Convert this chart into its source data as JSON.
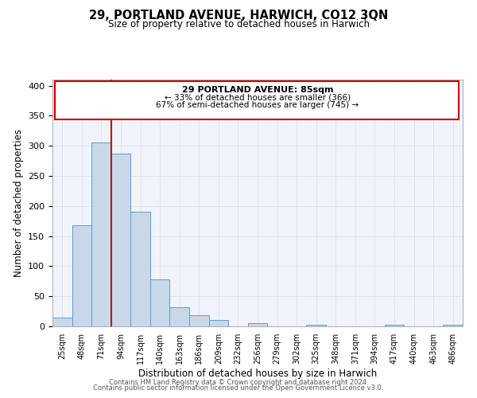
{
  "title": "29, PORTLAND AVENUE, HARWICH, CO12 3QN",
  "subtitle": "Size of property relative to detached houses in Harwich",
  "xlabel": "Distribution of detached houses by size in Harwich",
  "ylabel": "Number of detached properties",
  "bar_color": "#c8d8e8",
  "bar_edge_color": "#5b9bd5",
  "marker_line_color": "#cc0000",
  "bin_labels": [
    "25sqm",
    "48sqm",
    "71sqm",
    "94sqm",
    "117sqm",
    "140sqm",
    "163sqm",
    "186sqm",
    "209sqm",
    "232sqm",
    "256sqm",
    "279sqm",
    "302sqm",
    "325sqm",
    "348sqm",
    "371sqm",
    "394sqm",
    "417sqm",
    "440sqm",
    "463sqm",
    "486sqm"
  ],
  "bar_heights": [
    15,
    168,
    305,
    287,
    191,
    78,
    32,
    19,
    10,
    0,
    5,
    0,
    0,
    2,
    0,
    0,
    0,
    2,
    0,
    0,
    2
  ],
  "marker_bin_index": 2,
  "annotation_line1": "29 PORTLAND AVENUE: 85sqm",
  "annotation_line2": "← 33% of detached houses are smaller (366)",
  "annotation_line3": "67% of semi-detached houses are larger (745) →",
  "ylim": [
    0,
    410
  ],
  "yticks": [
    0,
    50,
    100,
    150,
    200,
    250,
    300,
    350,
    400
  ],
  "footer1": "Contains HM Land Registry data © Crown copyright and database right 2024.",
  "footer2": "Contains public sector information licensed under the Open Government Licence v3.0.",
  "grid_color": "#dde4ee",
  "bg_color": "#f0f4fa"
}
